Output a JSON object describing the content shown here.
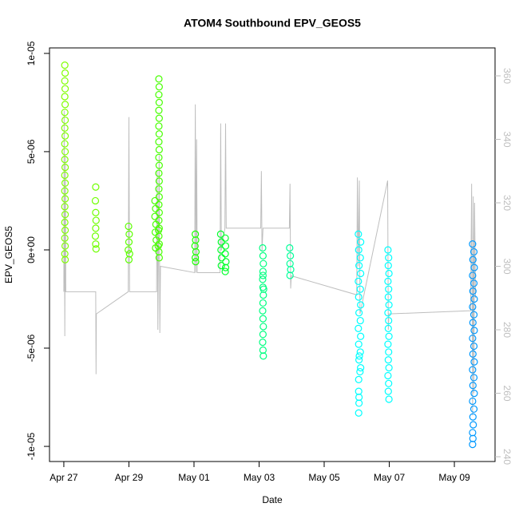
{
  "chart_data": {
    "type": "scatter",
    "title": "ATOM4 Southbound EPV_GEOS5",
    "xlabel": "Date",
    "ylabel": "EPV_GEOS5",
    "xlim": [
      -0.44,
      13.25
    ],
    "xticks": [
      {
        "value": 0,
        "label": "Apr 27"
      },
      {
        "value": 2,
        "label": "Apr 29"
      },
      {
        "value": 4,
        "label": "May 01"
      },
      {
        "value": 6,
        "label": "May 03"
      },
      {
        "value": 8,
        "label": "May 05"
      },
      {
        "value": 10,
        "label": "May 07"
      },
      {
        "value": 12,
        "label": "May 09"
      }
    ],
    "ylim": [
      -1.077e-05,
      1.028e-05
    ],
    "yticks": [
      {
        "value": 1e-05,
        "label": "1e-05"
      },
      {
        "value": 5e-06,
        "label": "5e-06"
      },
      {
        "value": 0,
        "label": "0e+00"
      },
      {
        "value": -5e-06,
        "label": "-5e-06"
      },
      {
        "value": -1e-05,
        "label": "-1e-05"
      }
    ],
    "y2lim": [
      238.5,
      368.8
    ],
    "y2ticks": [
      240,
      260,
      280,
      300,
      320,
      340,
      360
    ],
    "series": [
      {
        "color": "#bebebe",
        "type": "line",
        "axis": "y2",
        "x": [
          0.0,
          0.01,
          0.03,
          0.05,
          0.06,
          0.98,
          0.99,
          1.0,
          1.98,
          2.0,
          2.02,
          2.85,
          2.87,
          2.89,
          2.93,
          2.95,
          2.97,
          4.02,
          4.04,
          4.06,
          4.08,
          4.1,
          4.8,
          4.82,
          4.84,
          4.95,
          4.97,
          4.99,
          6.05,
          6.07,
          6.09,
          6.12,
          6.93,
          6.95,
          6.97,
          6.99,
          9.0,
          9.02,
          9.05,
          9.08,
          9.1,
          9.95,
          9.97,
          9.99,
          12.5,
          12.53,
          12.56,
          12.58,
          12.6,
          12.62,
          12.65
        ],
        "values": [
          292,
          349,
          278,
          335,
          292,
          292,
          266,
          285,
          292,
          347,
          292,
          292,
          330,
          280,
          335,
          279,
          300,
          298,
          351,
          298,
          340,
          298,
          298,
          345,
          305,
          312,
          345,
          312,
          312,
          330,
          305,
          312,
          312,
          326,
          293,
          297,
          291,
          328,
          300,
          327,
          285,
          327,
          280,
          285,
          286,
          326,
          253,
          322,
          260,
          320,
          290
        ]
      },
      {
        "color": "#80ff00",
        "type": "scatter",
        "x": [
          0.03,
          0.04,
          0.03,
          0.04,
          0.03,
          0.04,
          0.03,
          0.04,
          0.03,
          0.04,
          0.03,
          0.04,
          0.03,
          0.04,
          0.03,
          0.04,
          0.03,
          0.04,
          0.03,
          0.04,
          0.03,
          0.04,
          0.03,
          0.04,
          0.03,
          0.04
        ],
        "values": [
          9.4e-06,
          9e-06,
          8.6e-06,
          8.2e-06,
          7.8e-06,
          7.4e-06,
          7e-06,
          6.6e-06,
          6.2e-06,
          5.8e-06,
          5.4e-06,
          5e-06,
          4.6e-06,
          4.2e-06,
          3.8e-06,
          3.4e-06,
          3e-06,
          2.6e-06,
          2.2e-06,
          1.8e-06,
          1.4e-06,
          1e-06,
          6e-07,
          2e-07,
          -2e-07,
          -5e-07
        ]
      },
      {
        "color": "#6fff00",
        "type": "scatter",
        "x": [
          0.98,
          0.97,
          0.98,
          0.99,
          0.98,
          0.97,
          0.98,
          0.99
        ],
        "values": [
          3.2e-06,
          2.5e-06,
          1.9e-06,
          1.5e-06,
          1.1e-06,
          7e-07,
          3e-07,
          5e-08
        ]
      },
      {
        "color": "#5cff00",
        "type": "scatter",
        "x": [
          1.99,
          2.01,
          2.0,
          1.98,
          2.02,
          2.0
        ],
        "values": [
          1.2e-06,
          8e-07,
          4e-07,
          0,
          -2e-07,
          -5e-07
        ]
      },
      {
        "color": "#47ff00",
        "type": "scatter",
        "x": [
          2.8,
          2.82,
          2.8,
          2.83,
          2.81,
          2.84,
          2.82,
          2.92,
          2.93,
          2.92,
          2.93,
          2.92,
          2.93,
          2.92,
          2.93,
          2.92,
          2.93,
          2.92,
          2.93,
          2.92,
          2.93,
          2.92,
          2.93,
          2.92,
          2.93,
          2.92,
          2.93,
          2.92,
          2.93,
          2.92,
          2.93,
          2.91,
          2.9
        ],
        "values": [
          2.5e-06,
          2.1e-06,
          1.7e-06,
          1.3e-06,
          9e-07,
          5e-07,
          1e-07,
          8.7e-06,
          8.3e-06,
          7.9e-06,
          7.5e-06,
          7.1e-06,
          6.7e-06,
          6.3e-06,
          5.9e-06,
          5.5e-06,
          5.1e-06,
          4.7e-06,
          4.3e-06,
          3.9e-06,
          3.5e-06,
          3.1e-06,
          2.7e-06,
          2.3e-06,
          1.9e-06,
          1.5e-06,
          1.1e-06,
          7e-07,
          3e-07,
          -1e-07,
          -4e-07,
          1e-06,
          2e-07
        ]
      },
      {
        "color": "#1aff00",
        "type": "scatter",
        "x": [
          4.04,
          4.05,
          4.03,
          4.06,
          4.04,
          4.05
        ],
        "values": [
          8e-07,
          5e-07,
          2e-07,
          -1e-07,
          -4e-07,
          -6e-07
        ]
      },
      {
        "color": "#00ff2b",
        "type": "scatter",
        "x": [
          4.82,
          4.84,
          4.83,
          4.85,
          4.84,
          4.96,
          4.97,
          4.96,
          4.98,
          4.97,
          4.96
        ],
        "values": [
          8e-07,
          4e-07,
          0,
          -4e-07,
          -8e-07,
          6e-07,
          2e-07,
          -2e-07,
          -6e-07,
          -9e-07,
          -1.1e-06
        ]
      },
      {
        "color": "#00ff80",
        "type": "scatter",
        "x": [
          6.11,
          6.12,
          6.13,
          6.12,
          6.11,
          6.12,
          6.13,
          6.12,
          6.11,
          6.12,
          6.13,
          6.12,
          6.11,
          6.12,
          6.13,
          6.12,
          6.14
        ],
        "values": [
          1e-07,
          -3e-07,
          -7e-07,
          -1.1e-06,
          -1.5e-06,
          -1.9e-06,
          -2.3e-06,
          -2.7e-06,
          -3.1e-06,
          -3.5e-06,
          -3.9e-06,
          -4.3e-06,
          -4.7e-06,
          -5.1e-06,
          -5.4e-06,
          -1.3e-06,
          -2e-06
        ]
      },
      {
        "color": "#00ff99",
        "type": "scatter",
        "x": [
          6.94,
          6.96,
          6.95,
          6.97,
          6.95
        ],
        "values": [
          1e-07,
          -3e-07,
          -7e-07,
          -1e-06,
          -1.3e-06
        ]
      },
      {
        "color": "#00ffff",
        "type": "scatter",
        "x": [
          9.05,
          9.12,
          9.06,
          9.11,
          9.07,
          9.12,
          9.05,
          9.11,
          9.06,
          9.12,
          9.07,
          9.11,
          9.05,
          9.12,
          9.06,
          9.11,
          9.07,
          9.12,
          9.06,
          9.1,
          9.06,
          9.08,
          9.07,
          9.06,
          9.07,
          9.96,
          9.98,
          9.97,
          9.99,
          9.96,
          9.98,
          9.97,
          9.99,
          9.96,
          9.98,
          9.97,
          9.99,
          9.96,
          9.98,
          9.97,
          9.99,
          9.96,
          9.98,
          9.97,
          9.99
        ],
        "values": [
          8e-07,
          4e-07,
          0,
          -4e-07,
          -8e-07,
          -1.2e-06,
          -1.6e-06,
          -2e-06,
          -2.4e-06,
          -2.8e-06,
          -3.2e-06,
          -3.6e-06,
          -4e-06,
          -4.4e-06,
          -4.8e-06,
          -5.2e-06,
          -5.6e-06,
          -6e-06,
          -6.6e-06,
          -6.2e-06,
          -7.2e-06,
          -5.4e-06,
          -7.8e-06,
          -8.3e-06,
          -7.5e-06,
          0,
          -4e-07,
          -8e-07,
          -1.2e-06,
          -1.6e-06,
          -2e-06,
          -2.4e-06,
          -2.8e-06,
          -3.2e-06,
          -3.6e-06,
          -4e-06,
          -4.4e-06,
          -4.8e-06,
          -5.2e-06,
          -5.6e-06,
          -6e-06,
          -6.4e-06,
          -6.8e-06,
          -7.2e-06,
          -7.6e-06
        ]
      },
      {
        "color": "#0099ff",
        "type": "scatter",
        "x": [
          12.56,
          12.6,
          12.57,
          12.61,
          12.56,
          12.6,
          12.57,
          12.61,
          12.56,
          12.6,
          12.57,
          12.61,
          12.56,
          12.6,
          12.57,
          12.61,
          12.56,
          12.6,
          12.57,
          12.61,
          12.56,
          12.6,
          12.57,
          12.58,
          12.56,
          12.57,
          12.56
        ],
        "values": [
          3e-07,
          -1e-07,
          -5e-07,
          -9e-07,
          -1.3e-06,
          -1.7e-06,
          -2.1e-06,
          -2.5e-06,
          -2.9e-06,
          -3.3e-06,
          -3.7e-06,
          -4.1e-06,
          -4.5e-06,
          -4.9e-06,
          -5.3e-06,
          -5.7e-06,
          -6.1e-06,
          -6.5e-06,
          -6.9e-06,
          -7.3e-06,
          -7.7e-06,
          -8.1e-06,
          -8.5e-06,
          -8.9e-06,
          -9.3e-06,
          -9.6e-06,
          -9.9e-06
        ]
      }
    ]
  }
}
